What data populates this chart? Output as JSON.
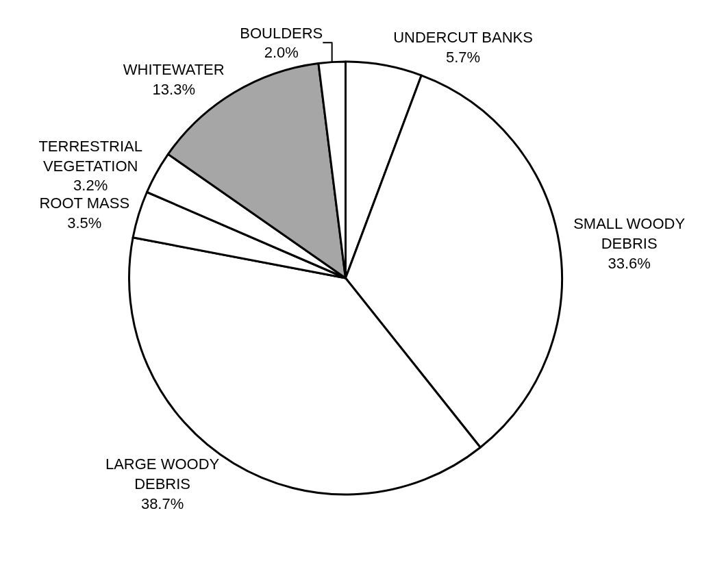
{
  "chart_data": {
    "type": "pie",
    "categories": [
      "UNDERCUT BANKS",
      "SMALL WOODY DEBRIS",
      "LARGE WOODY DEBRIS",
      "ROOT MASS",
      "TERRESTRIAL VEGETATION",
      "WHITEWATER",
      "BOULDERS"
    ],
    "values": [
      5.7,
      33.6,
      38.7,
      3.5,
      3.2,
      13.3,
      2.0
    ],
    "value_labels": [
      "5.7%",
      "33.6%",
      "38.7%",
      "3.5%",
      "3.2%",
      "13.3%",
      "2.0%"
    ],
    "colors": [
      "#ffffff",
      "#ffffff",
      "#ffffff",
      "#ffffff",
      "#ffffff",
      "#a6a6a6",
      "#ffffff"
    ],
    "legend": false
  }
}
